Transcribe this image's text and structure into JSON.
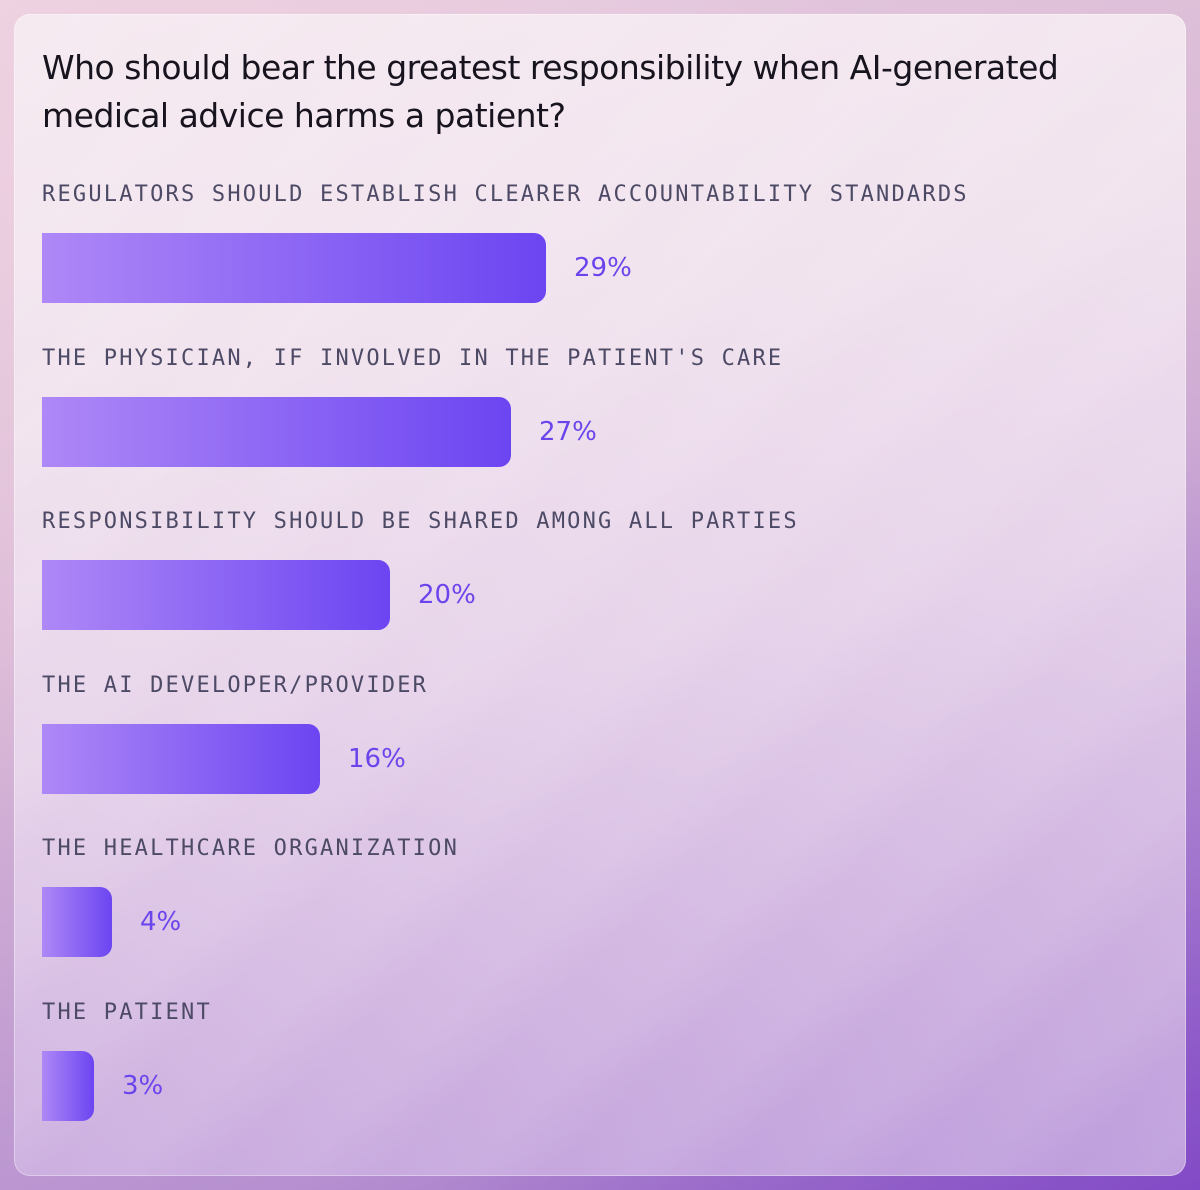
{
  "chart_data": {
    "type": "bar",
    "orientation": "horizontal",
    "title": "Who should bear the greatest responsibility when AI-generated medical advice harms a patient?",
    "categories": [
      "REGULATORS SHOULD ESTABLISH CLEARER ACCOUNTABILITY STANDARDS",
      "THE PHYSICIAN, IF INVOLVED IN THE PATIENT'S CARE",
      "RESPONSIBILITY SHOULD BE SHARED AMONG ALL PARTIES",
      "THE AI DEVELOPER/PROVIDER",
      "THE HEALTHCARE ORGANIZATION",
      "THE PATIENT"
    ],
    "values": [
      29,
      27,
      20,
      16,
      4,
      3
    ],
    "value_labels": [
      "29%",
      "27%",
      "20%",
      "16%",
      "4%",
      "3%"
    ],
    "xlim": [
      0,
      65
    ],
    "grid": false,
    "legend": "none",
    "colors": {
      "bar_start": "#ae88f6",
      "bar_end": "#6c45f2",
      "value_text": "#6b45ec",
      "label_text": "#4d4a66",
      "title_text": "#17141f"
    }
  }
}
